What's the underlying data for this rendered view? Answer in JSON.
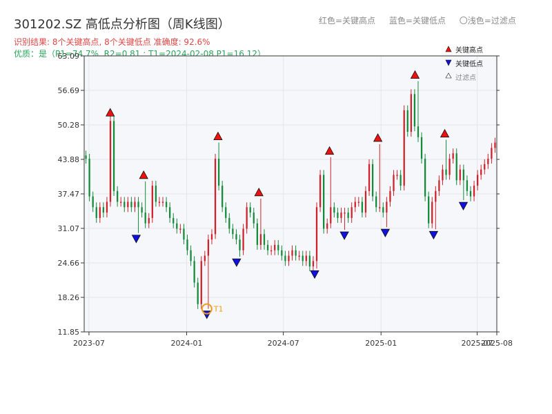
{
  "title": "301202.SZ 高低点分析图（周K线图）",
  "header_legend": {
    "red": "红色=关键高点",
    "blue": "蓝色=关键低点",
    "light": "〇浅色=过滤点"
  },
  "subtitle": "识别结果: 8个关键高点, 8个关键低点  准确度: 92.6%",
  "quality": "优质：是（P1=74.7%, R2=0.81 ; T1=2024-02-08 P1=16.12）",
  "colors": {
    "up": "#d0202a",
    "down": "#148a3a",
    "high_marker": "#ee1111",
    "low_marker": "#1111dd",
    "t1": "#f29a17",
    "plot_bg": "#f5f7fa",
    "grid": "#e3e6ea"
  },
  "chart_data": {
    "type": "candlestick",
    "title": "301202.SZ 高低点分析图（周K线图）",
    "x_start": "2023-06-22",
    "x_end": "2025-08-07",
    "xticks": [
      {
        "date": "2023-07-01",
        "label": "2023-07"
      },
      {
        "date": "2024-01-01",
        "label": "2024-01"
      },
      {
        "date": "2024-07-01",
        "label": "2024-07"
      },
      {
        "date": "2025-01-01",
        "label": "2025-01"
      },
      {
        "date": "2025-07-01",
        "label": "2025-07"
      },
      {
        "date": "2025-08-07",
        "label": "2025-08"
      }
    ],
    "ylim": [
      11.85,
      63.09
    ],
    "yticks": [
      11.85,
      18.26,
      24.66,
      31.07,
      37.47,
      43.88,
      50.28,
      56.69,
      63.09
    ],
    "grid": true,
    "legend": {
      "position": "top-right",
      "entries": [
        "关键高点",
        "关键低点",
        "过滤点"
      ]
    },
    "close": [
      44,
      37,
      35,
      33,
      35,
      34,
      36,
      51,
      38,
      36,
      36,
      35,
      36,
      35,
      36,
      35,
      34,
      32,
      33,
      39,
      36,
      36,
      36,
      35,
      33,
      32,
      31,
      31,
      29,
      27,
      25,
      21,
      17,
      25,
      26,
      29,
      30,
      44,
      39,
      35,
      33,
      31,
      30,
      29,
      27,
      31,
      35,
      34,
      32,
      28,
      30,
      28,
      27,
      27,
      28,
      27,
      26,
      25,
      26,
      27,
      26,
      26,
      25,
      26,
      24,
      25,
      35,
      41,
      31,
      32,
      35,
      34,
      33,
      34,
      34,
      33,
      35,
      36,
      36,
      34,
      38,
      43,
      37,
      35,
      35,
      34,
      36,
      38,
      41,
      41,
      39,
      53,
      49,
      56,
      50,
      48,
      44,
      37,
      32,
      36,
      38,
      40,
      42,
      41,
      44,
      45,
      40,
      42,
      40,
      38,
      37,
      39,
      41,
      42,
      43,
      44,
      46,
      47
    ]
  },
  "key_highs": [
    {
      "date": "2023-08-10",
      "price": 51.4
    },
    {
      "date": "2023-10-12",
      "price": 39.8
    },
    {
      "date": "2024-02-29",
      "price": 47.0
    },
    {
      "date": "2024-05-16",
      "price": 36.6
    },
    {
      "date": "2024-09-26",
      "price": 44.3
    },
    {
      "date": "2024-12-26",
      "price": 46.7
    },
    {
      "date": "2025-03-06",
      "price": 58.4
    },
    {
      "date": "2025-05-01",
      "price": 47.5
    }
  ],
  "key_lows": [
    {
      "date": "2023-09-28",
      "price": 30.2
    },
    {
      "date": "2024-02-08",
      "price": 16.12
    },
    {
      "date": "2024-04-04",
      "price": 25.8
    },
    {
      "date": "2024-08-29",
      "price": 23.6
    },
    {
      "date": "2024-10-24",
      "price": 30.8
    },
    {
      "date": "2025-01-09",
      "price": 31.3
    },
    {
      "date": "2025-04-10",
      "price": 30.9
    },
    {
      "date": "2025-06-05",
      "price": 36.3
    }
  ],
  "t1_marker": {
    "label": "T1",
    "date": "2024-02-08",
    "price": 16.12
  }
}
